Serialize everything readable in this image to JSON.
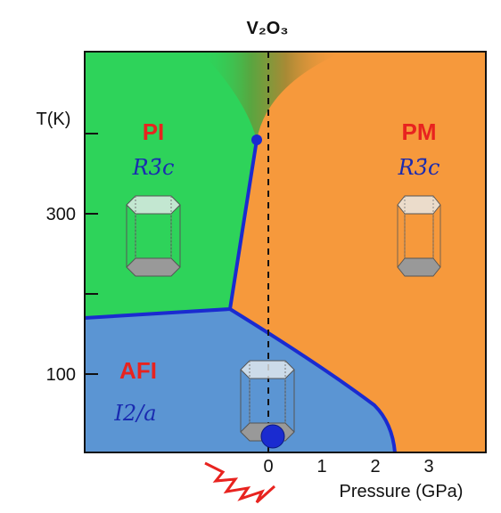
{
  "title": "V₂O₃",
  "y_axis": {
    "label": "T(K)",
    "ticks": [
      "300",
      "100"
    ]
  },
  "x_axis": {
    "label": "Pressure (GPa)",
    "ticks": [
      "0",
      "1",
      "2",
      "3"
    ]
  },
  "phases": [
    {
      "name": "PI",
      "symmetry": "R3̄c"
    },
    {
      "name": "PM",
      "symmetry": "R3̄c"
    },
    {
      "name": "AFI",
      "symmetry": "I2/a"
    }
  ]
}
